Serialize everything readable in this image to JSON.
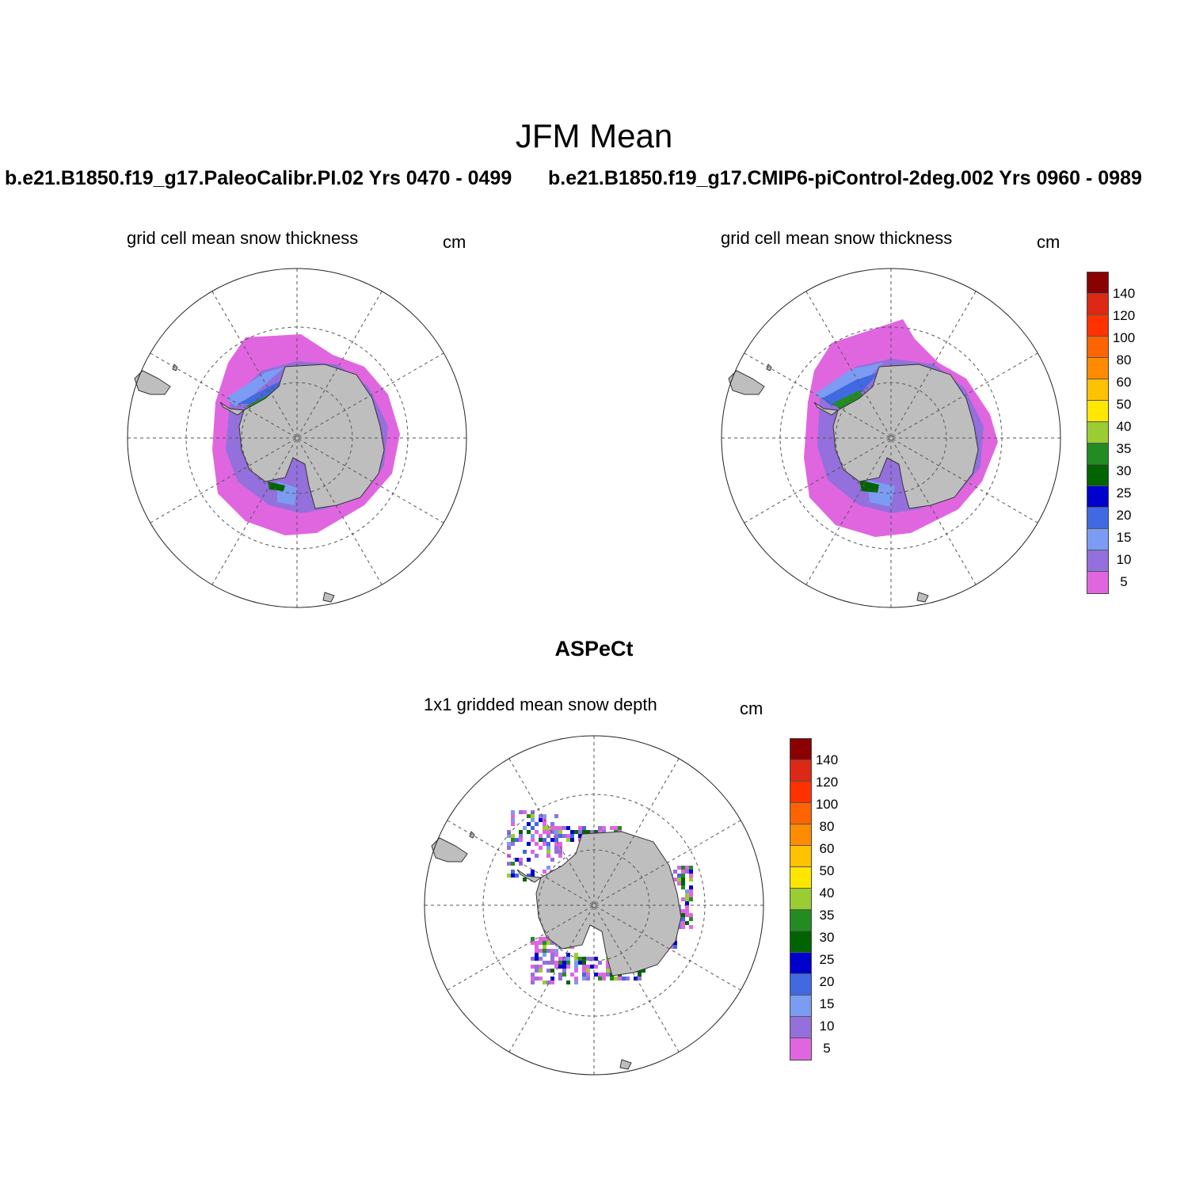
{
  "figure": {
    "title": "JFM Mean",
    "case_left": "b.e21.B1850.f19_g17.PaleoCalibr.PI.02  Yrs 0470 - 0499",
    "case_right": "b.e21.B1850.f19_g17.CMIP6-piControl-2deg.002  Yrs 0960 - 0989",
    "obs_title": "ASPeCt"
  },
  "panels": [
    {
      "label": "grid cell mean snow thickness",
      "unit": "cm"
    },
    {
      "label": "grid cell mean snow thickness",
      "unit": "cm"
    },
    {
      "label": "1x1 gridded mean snow depth",
      "unit": "cm"
    }
  ],
  "colorbar": {
    "levels": [
      "5",
      "10",
      "15",
      "20",
      "25",
      "30",
      "35",
      "40",
      "50",
      "60",
      "80",
      "100",
      "120",
      "140"
    ],
    "colors": [
      "#e066e0",
      "#9370db",
      "#7b9cf2",
      "#4169e1",
      "#0000cd",
      "#006400",
      "#228b22",
      "#9acd32",
      "#ffe600",
      "#ffc100",
      "#ff8c00",
      "#ff6400",
      "#ff3200",
      "#dc2814",
      "#8b0000"
    ]
  },
  "map_style": {
    "land": "#bebebe",
    "ocean": "#ffffff",
    "grid": "#555555"
  }
}
